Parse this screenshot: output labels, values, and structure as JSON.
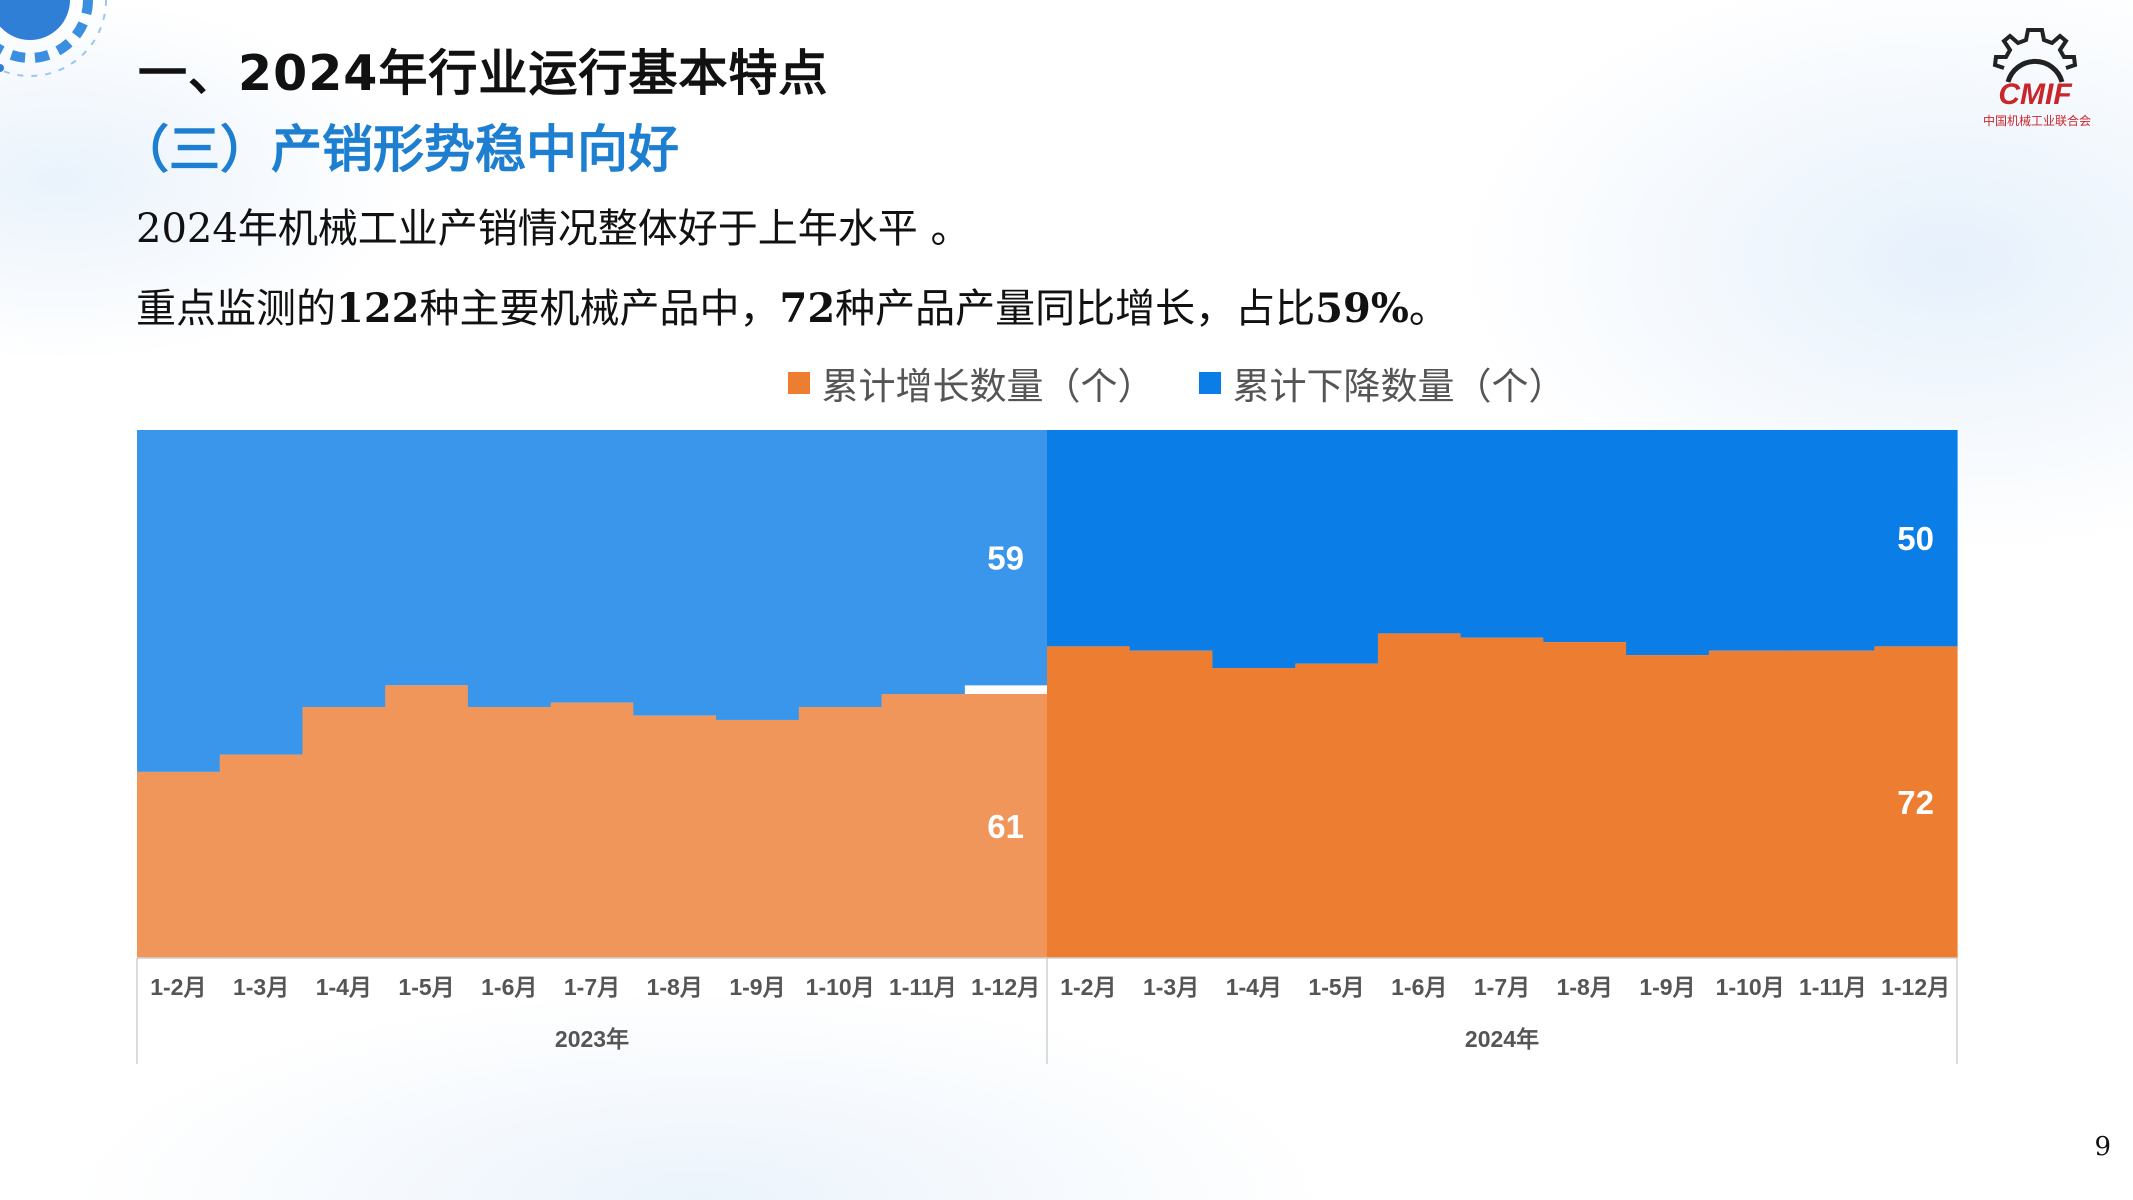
{
  "slide": {
    "title": "一、2024年行业运行基本特点",
    "subtitle": "（三）产销形势稳中向好",
    "line1": "2024年机械工业产销情况整体好于上年水平 。",
    "line2_parts": [
      "重点监测的",
      "122",
      "种主要机械产品中，",
      "72",
      "种产品产量同比增长，占比",
      "59%",
      "。"
    ],
    "page_number": "9"
  },
  "logo": {
    "text": "CMIF",
    "caption": "中国机械工业联合会"
  },
  "colors": {
    "title_blue": "#1e7fd1",
    "inc_2023": "#f0965a",
    "dec_2023": "#3996ea",
    "inc_2024": "#ed7d31",
    "dec_2024": "#0a7ee6"
  },
  "chart_data": {
    "type": "bar",
    "stacked": true,
    "legend_position": "top-center",
    "groups": [
      {
        "label": "2023年",
        "categories": [
          "1-2月",
          "1-3月",
          "1-4月",
          "1-5月",
          "1-6月",
          "1-7月",
          "1-8月",
          "1-9月",
          "1-10月",
          "1-11月",
          "1-12月"
        ]
      },
      {
        "label": "2024年",
        "categories": [
          "1-2月",
          "1-3月",
          "1-4月",
          "1-5月",
          "1-6月",
          "1-7月",
          "1-8月",
          "1-9月",
          "1-10月",
          "1-11月",
          "1-12月"
        ]
      }
    ],
    "series": [
      {
        "name": "累计增长数量（个）",
        "values": [
          43,
          47,
          58,
          63,
          58,
          59,
          56,
          55,
          58,
          61,
          61,
          72,
          71,
          67,
          68,
          75,
          74,
          73,
          70,
          71,
          71,
          72
        ],
        "data_labels": {
          "10": "61",
          "21": "72"
        }
      },
      {
        "name": "累计下降数量（个）",
        "values": [
          79,
          75,
          64,
          59,
          64,
          63,
          66,
          67,
          64,
          61,
          59,
          50,
          51,
          55,
          54,
          47,
          48,
          49,
          52,
          51,
          51,
          50
        ],
        "data_labels": {
          "10": "59",
          "21": "50"
        }
      }
    ],
    "total": 122,
    "ylim": [
      0,
      122
    ]
  }
}
